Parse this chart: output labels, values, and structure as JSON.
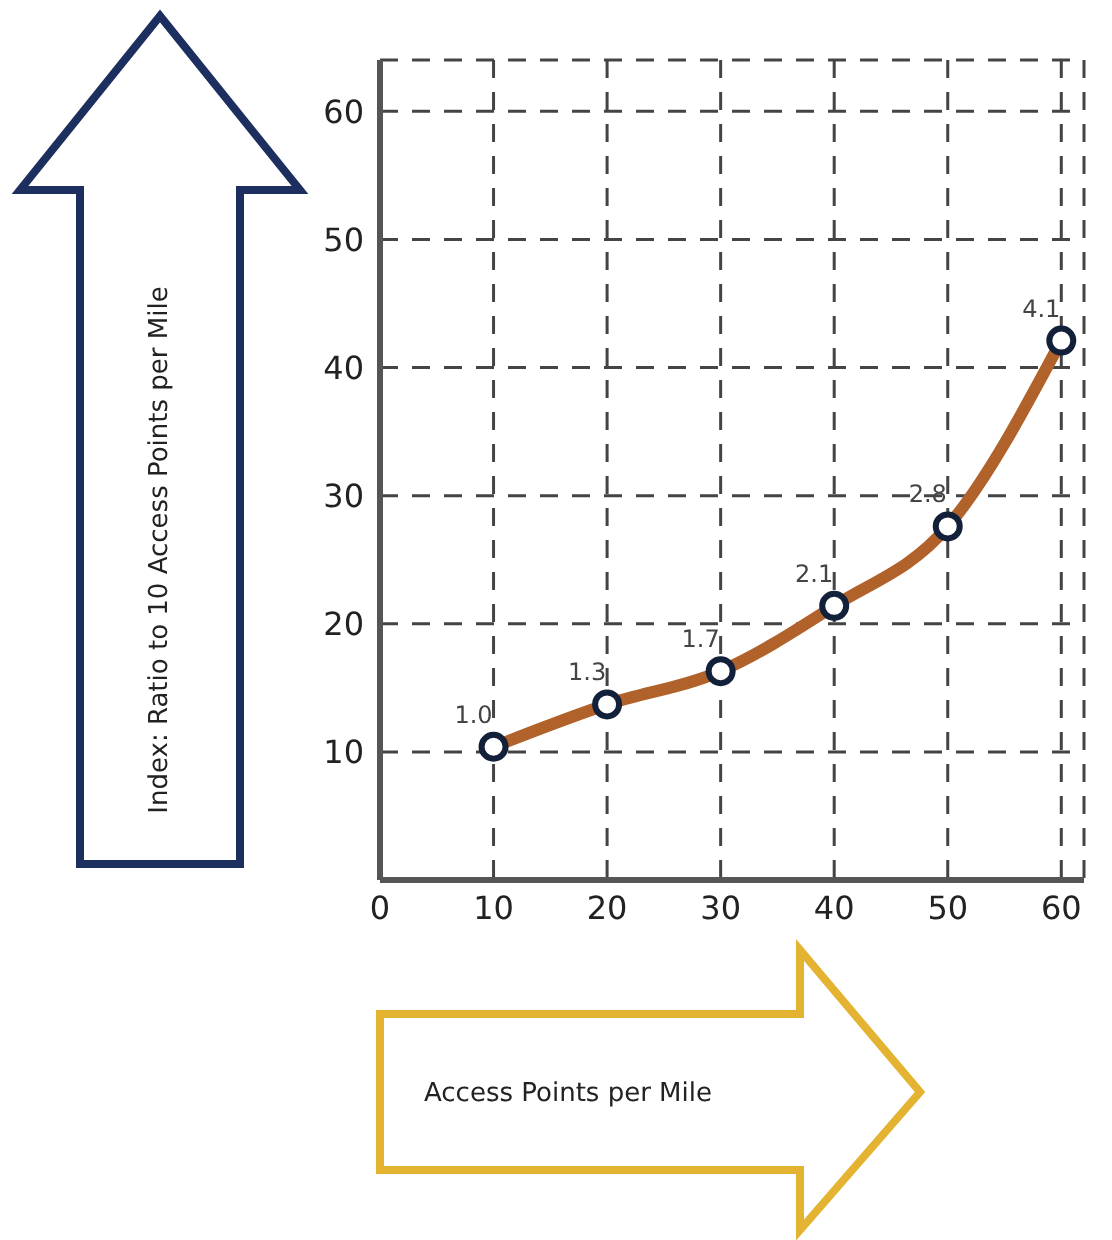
{
  "chart_data": {
    "type": "line",
    "annotations": [
      "Index: Ratio to 10 Access Points per Mile",
      "Access Points per Mile",
      {
        "text": "1.0",
        "x": 10,
        "y": 10.4
      },
      {
        "text": "1.3",
        "x": 20,
        "y": 13.7
      },
      {
        "text": "1.7",
        "x": 30,
        "y": 16.3
      },
      {
        "text": "2.1",
        "x": 40,
        "y": 21.4
      },
      {
        "text": "2.8",
        "x": 50,
        "y": 27.6
      },
      {
        "text": "4.1",
        "x": 60,
        "y": 42.1
      }
    ],
    "x": [
      10,
      20,
      30,
      40,
      50,
      60
    ],
    "series": [
      {
        "color": "#b1612a",
        "values": [
          10.4,
          13.7,
          16.3,
          21.4,
          27.6,
          42.1
        ]
      }
    ],
    "xlim": [
      0,
      62
    ],
    "xticks": [
      0,
      10,
      20,
      30,
      40,
      50,
      60
    ],
    "ylim": [
      0,
      64
    ],
    "yticks": [
      10,
      20,
      30,
      40,
      50,
      60
    ],
    "grid": true,
    "marker": "circle",
    "line_style": "solid"
  }
}
